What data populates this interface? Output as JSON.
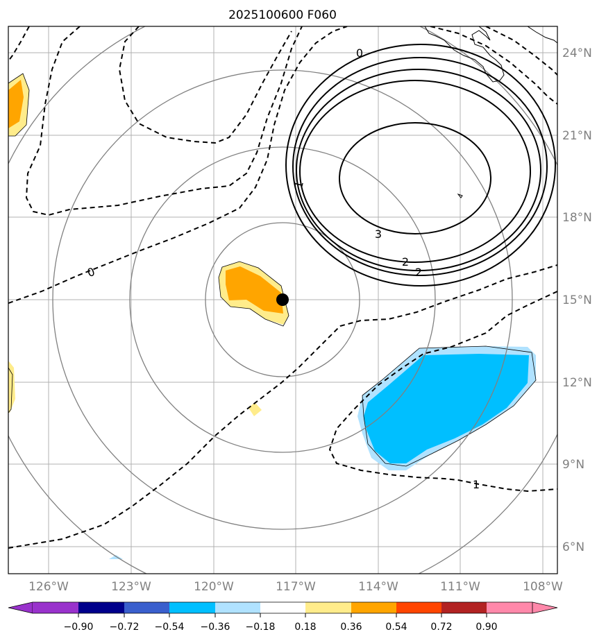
{
  "title": "2025100600 F060",
  "lon_ticks": [
    "126°W",
    "123°W",
    "120°W",
    "117°W",
    "114°W",
    "111°W",
    "108°W"
  ],
  "lat_ticks": [
    "24°N",
    "21°N",
    "18°N",
    "15°N",
    "12°N",
    "9°N",
    "6°N"
  ],
  "colorbar": {
    "tick_labels": [
      "−0.90",
      "−0.72",
      "−0.54",
      "−0.36",
      "−0.18",
      "0.18",
      "0.36",
      "0.54",
      "0.72",
      "0.90"
    ],
    "colors": [
      "#9932cc",
      "#00008b",
      "#3a5fcd",
      "#00bfff",
      "#b0e2ff",
      "#ffffff",
      "#ffec8b",
      "#ffa500",
      "#ff4500",
      "#b22222",
      "#ff88aa"
    ]
  },
  "contour_labels": [
    "0",
    "1",
    "3",
    "2",
    "2",
    "0",
    "1"
  ],
  "fill_colors": {
    "orange": "#ffa500",
    "yellow": "#ffec8b",
    "cyan": "#00bfff",
    "lightblue": "#b0e2ff"
  },
  "center_marker": {
    "lon": -117.5,
    "lat": 15.0
  }
}
